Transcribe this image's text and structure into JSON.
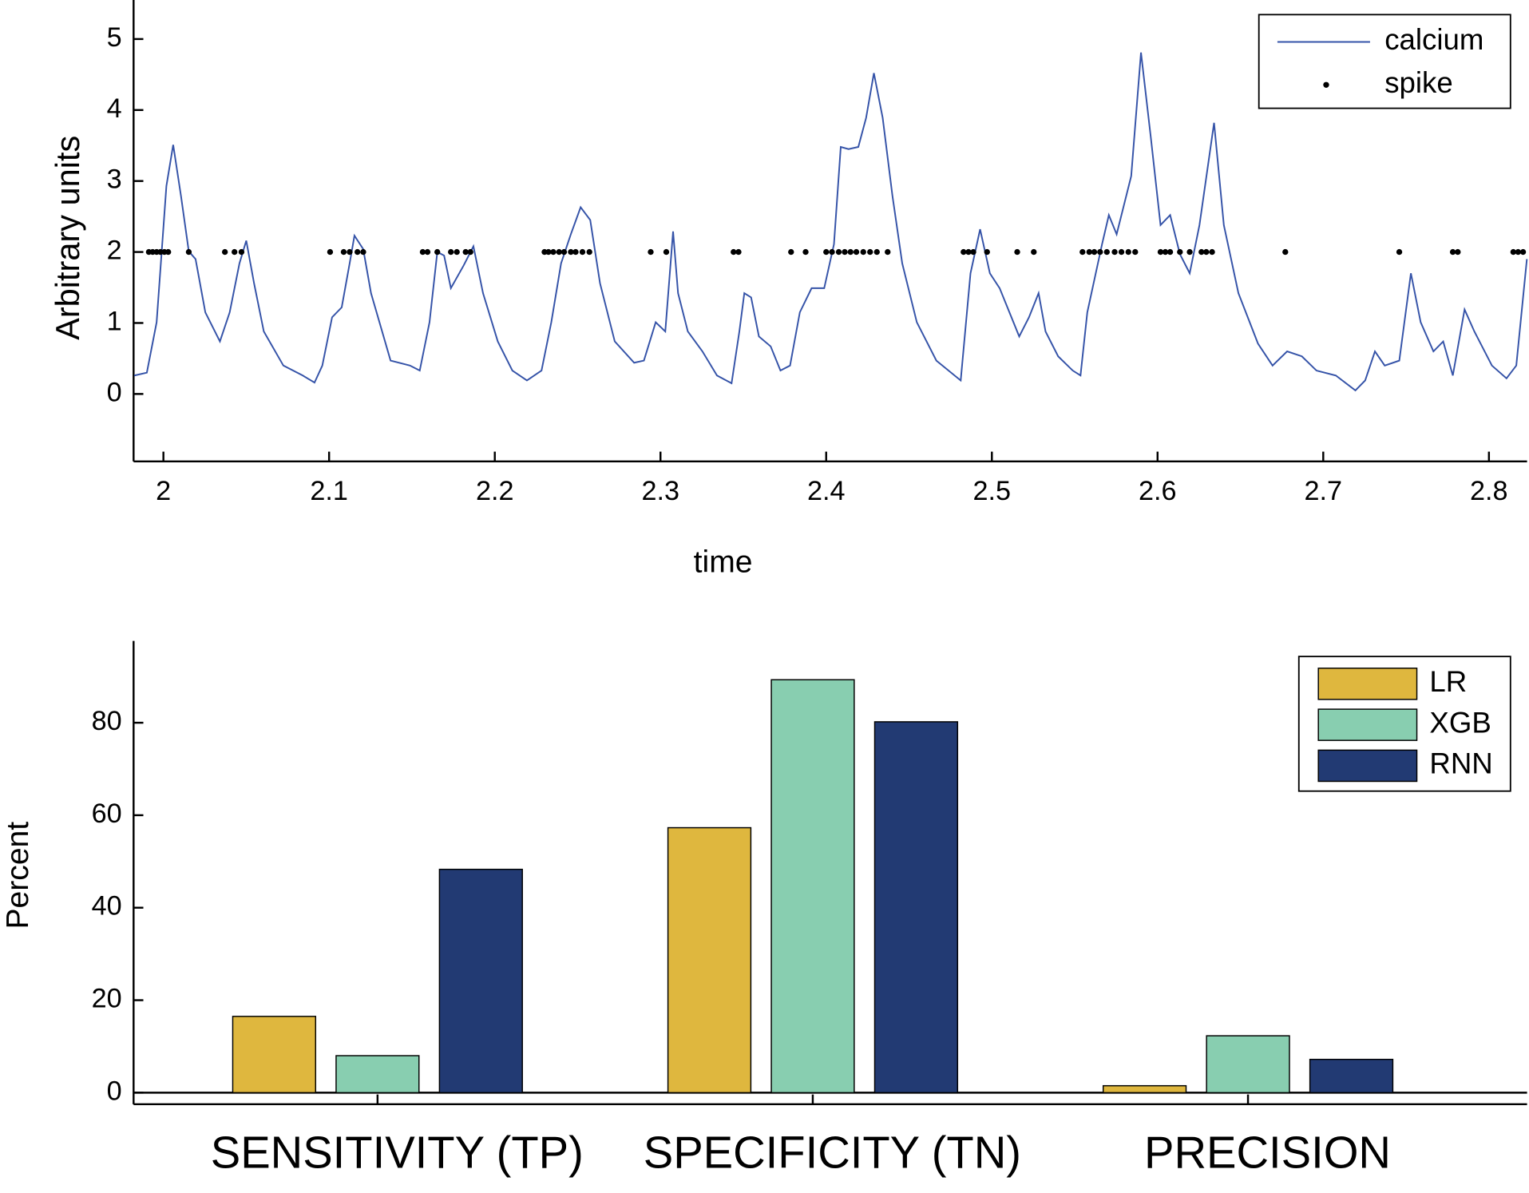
{
  "chart_data": [
    {
      "type": "line",
      "xlabel": "time",
      "ylabel": "Arbitrary units",
      "xlim": [
        1.982,
        2.823
      ],
      "ylim": [
        -0.95,
        5.55
      ],
      "xticks": [
        2,
        2.1,
        2.2,
        2.3,
        2.4,
        2.5,
        2.6,
        2.7,
        2.8
      ],
      "yticks": [
        0,
        1,
        2,
        3,
        4,
        5
      ],
      "legend": "upper right",
      "series": [
        {
          "name": "calcium",
          "type": "line",
          "color": "#3553a8",
          "x": [
            1.9824,
            1.99,
            1.9959,
            2.0018,
            2.0059,
            2.0106,
            2.0153,
            2.0194,
            2.0253,
            2.0341,
            2.04,
            2.0459,
            2.05,
            2.0547,
            2.0606,
            2.0724,
            2.0841,
            2.0912,
            2.0959,
            2.1018,
            2.1076,
            2.1124,
            2.1153,
            2.1206,
            2.1253,
            2.1371,
            2.1488,
            2.1547,
            2.1606,
            2.1653,
            2.1694,
            2.1735,
            2.1812,
            2.1871,
            2.1929,
            2.2018,
            2.2106,
            2.2194,
            2.2282,
            2.2341,
            2.24,
            2.2459,
            2.2518,
            2.2576,
            2.2635,
            2.2724,
            2.2841,
            2.29,
            2.2971,
            2.3029,
            2.3076,
            2.3106,
            2.3165,
            2.3253,
            2.3341,
            2.3429,
            2.3476,
            2.3506,
            2.3547,
            2.3594,
            2.3665,
            2.3724,
            2.3782,
            2.3841,
            2.3912,
            2.3988,
            2.4047,
            2.4088,
            2.4135,
            2.4194,
            2.4241,
            2.4288,
            2.4341,
            2.44,
            2.4459,
            2.4547,
            2.4665,
            2.4812,
            2.4871,
            2.4929,
            2.4988,
            2.5047,
            2.5106,
            2.5165,
            2.5224,
            2.5282,
            2.5324,
            2.54,
            2.5488,
            2.5535,
            2.5576,
            2.5665,
            2.5706,
            2.5753,
            2.5841,
            2.59,
            2.5959,
            2.6018,
            2.6076,
            2.6135,
            2.6194,
            2.6253,
            2.6341,
            2.64,
            2.6488,
            2.6606,
            2.6694,
            2.6782,
            2.6871,
            2.6959,
            2.7076,
            2.7194,
            2.7253,
            2.7312,
            2.7371,
            2.7459,
            2.7529,
            2.7588,
            2.7665,
            2.7724,
            2.7782,
            2.7853,
            2.7912,
            2.8018,
            2.8106,
            2.8165,
            2.8229
          ],
          "values": [
            0.26,
            0.3,
            1.01,
            2.93,
            3.51,
            2.79,
            2.01,
            1.9,
            1.15,
            0.74,
            1.15,
            1.84,
            2.16,
            1.56,
            0.88,
            0.4,
            0.26,
            0.16,
            0.4,
            1.08,
            1.22,
            1.84,
            2.23,
            2.04,
            1.42,
            0.47,
            0.4,
            0.33,
            1.01,
            2.0,
            1.95,
            1.49,
            1.81,
            2.08,
            1.42,
            0.74,
            0.33,
            0.19,
            0.33,
            1.01,
            1.84,
            2.25,
            2.63,
            2.45,
            1.56,
            0.74,
            0.44,
            0.47,
            1.01,
            0.88,
            2.29,
            1.42,
            0.88,
            0.6,
            0.26,
            0.15,
            0.88,
            1.42,
            1.36,
            0.81,
            0.67,
            0.33,
            0.4,
            1.15,
            1.49,
            1.49,
            2.11,
            3.48,
            3.45,
            3.48,
            3.89,
            4.52,
            3.89,
            2.79,
            1.84,
            1.01,
            0.47,
            0.19,
            1.7,
            2.32,
            1.7,
            1.49,
            1.15,
            0.81,
            1.08,
            1.42,
            0.88,
            0.53,
            0.33,
            0.26,
            1.15,
            2.11,
            2.52,
            2.25,
            3.07,
            4.81,
            3.62,
            2.38,
            2.52,
            1.97,
            1.7,
            2.38,
            3.82,
            2.38,
            1.42,
            0.71,
            0.4,
            0.6,
            0.53,
            0.33,
            0.26,
            0.05,
            0.19,
            0.6,
            0.4,
            0.47,
            1.7,
            1.01,
            0.6,
            0.74,
            0.26,
            1.19,
            0.88,
            0.4,
            0.22,
            0.4,
            1.9
          ]
        },
        {
          "name": "spike",
          "type": "scatter",
          "color": "#000000",
          "x": [
            1.9912,
            1.9935,
            1.9959,
            1.9982,
            2.0006,
            2.0029,
            2.0153,
            2.0371,
            2.0429,
            2.0471,
            2.1006,
            2.1088,
            2.1124,
            2.1171,
            2.1206,
            2.1565,
            2.1594,
            2.1653,
            2.1735,
            2.1771,
            2.1824,
            2.1853,
            2.23,
            2.2324,
            2.2353,
            2.2388,
            2.2418,
            2.2459,
            2.2488,
            2.2529,
            2.2571,
            2.2941,
            2.3035,
            2.3441,
            2.3471,
            2.3788,
            2.3876,
            2.4,
            2.4035,
            2.4076,
            2.4112,
            2.4147,
            2.4182,
            2.4224,
            2.4265,
            2.4306,
            2.4371,
            2.4829,
            2.4859,
            2.4888,
            2.4971,
            2.5153,
            2.5253,
            2.5547,
            2.5588,
            2.5618,
            2.5653,
            2.5694,
            2.5741,
            2.5782,
            2.5824,
            2.5865,
            2.6018,
            2.6047,
            2.6076,
            2.6135,
            2.6194,
            2.6265,
            2.6294,
            2.6329,
            2.6771,
            2.7459,
            2.7782,
            2.7812,
            2.8147,
            2.8176,
            2.8206
          ],
          "values": [
            2,
            2,
            2,
            2,
            2,
            2,
            2,
            2,
            2,
            2,
            2,
            2,
            2,
            2,
            2,
            2,
            2,
            2,
            2,
            2,
            2,
            2,
            2,
            2,
            2,
            2,
            2,
            2,
            2,
            2,
            2,
            2,
            2,
            2,
            2,
            2,
            2,
            2,
            2,
            2,
            2,
            2,
            2,
            2,
            2,
            2,
            2,
            2,
            2,
            2,
            2,
            2,
            2,
            2,
            2,
            2,
            2,
            2,
            2,
            2,
            2,
            2,
            2,
            2,
            2,
            2,
            2,
            2,
            2,
            2,
            2,
            2,
            2,
            2,
            2,
            2,
            2
          ]
        }
      ]
    },
    {
      "type": "bar",
      "ylabel": "Percent",
      "categories": [
        "SENSITIVITY (TP)",
        "SPECIFICITY (TN)",
        "PRECISION"
      ],
      "ylim": [
        -2.5,
        97.7
      ],
      "yticks": [
        0,
        20,
        40,
        60,
        80
      ],
      "legend": "upper right",
      "series": [
        {
          "name": "LR",
          "color": "#dfb73e",
          "values": [
            16.5,
            57.3,
            1.5
          ]
        },
        {
          "name": "XGB",
          "color": "#88ceb0",
          "values": [
            8,
            89.3,
            12.3
          ]
        },
        {
          "name": "RNN",
          "color": "#223a73",
          "values": [
            48.3,
            80.2,
            7.2
          ]
        }
      ]
    }
  ]
}
